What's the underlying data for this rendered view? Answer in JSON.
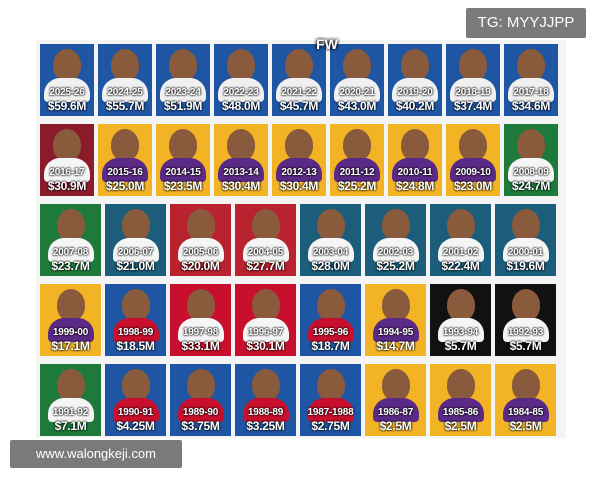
{
  "watermarks": {
    "top_right": "TG: MYYJJPP",
    "bottom_left": "www.walongkeji.com",
    "center_logo": "FW"
  },
  "rows": [
    [
      {
        "season": "2025-26",
        "salary": "$59.6M",
        "bg": "#1f56a3",
        "jersey": "#f0f0f0"
      },
      {
        "season": "2024-25",
        "salary": "$55.7M",
        "bg": "#1f56a3",
        "jersey": "#f0f0f0"
      },
      {
        "season": "2023-24",
        "salary": "$51.9M",
        "bg": "#1f56a3",
        "jersey": "#f0f0f0"
      },
      {
        "season": "2022-23",
        "salary": "$48.0M",
        "bg": "#1f56a3",
        "jersey": "#f0f0f0"
      },
      {
        "season": "2021-22",
        "salary": "$45.7M",
        "bg": "#1f56a3",
        "jersey": "#f0f0f0"
      },
      {
        "season": "2020-21",
        "salary": "$43.0M",
        "bg": "#1f56a3",
        "jersey": "#f0f0f0"
      },
      {
        "season": "2019-20",
        "salary": "$40.2M",
        "bg": "#1f56a3",
        "jersey": "#f0f0f0"
      },
      {
        "season": "2018-19",
        "salary": "$37.4M",
        "bg": "#1f56a3",
        "jersey": "#f0f0f0"
      },
      {
        "season": "2017-18",
        "salary": "$34.6M",
        "bg": "#1f56a3",
        "jersey": "#f0f0f0"
      }
    ],
    [
      {
        "season": "2016-17",
        "salary": "$30.9M",
        "bg": "#8b1a2b",
        "jersey": "#f5f5f5"
      },
      {
        "season": "2015-16",
        "salary": "$25.0M",
        "bg": "#f2b324",
        "jersey": "#5b2a86"
      },
      {
        "season": "2014-15",
        "salary": "$23.5M",
        "bg": "#f2b324",
        "jersey": "#5b2a86"
      },
      {
        "season": "2013-14",
        "salary": "$30.4M",
        "bg": "#f2b324",
        "jersey": "#5b2a86"
      },
      {
        "season": "2012-13",
        "salary": "$30.4M",
        "bg": "#f2b324",
        "jersey": "#5b2a86"
      },
      {
        "season": "2011-12",
        "salary": "$25.2M",
        "bg": "#f2b324",
        "jersey": "#5b2a86"
      },
      {
        "season": "2010-11",
        "salary": "$24.8M",
        "bg": "#f2b324",
        "jersey": "#5b2a86"
      },
      {
        "season": "2009-10",
        "salary": "$23.0M",
        "bg": "#f2b324",
        "jersey": "#5b2a86"
      },
      {
        "season": "2008-09",
        "salary": "$24.7M",
        "bg": "#1e7a3a",
        "jersey": "#f5f5f5"
      }
    ],
    [
      {
        "season": "2007-08",
        "salary": "$23.7M",
        "bg": "#1e7a3a",
        "jersey": "#f5f5f5"
      },
      {
        "season": "2006-07",
        "salary": "$21.0M",
        "bg": "#1b5d7a",
        "jersey": "#f5f5f5"
      },
      {
        "season": "2005-06",
        "salary": "$20.0M",
        "bg": "#b8232f",
        "jersey": "#f5f5f5"
      },
      {
        "season": "2004-05",
        "salary": "$27.7M",
        "bg": "#b8232f",
        "jersey": "#f5f5f5"
      },
      {
        "season": "2003-04",
        "salary": "$28.0M",
        "bg": "#1b5d7a",
        "jersey": "#f5f5f5"
      },
      {
        "season": "2002-03",
        "salary": "$25.2M",
        "bg": "#1b5d7a",
        "jersey": "#f5f5f5"
      },
      {
        "season": "2001-02",
        "salary": "$22.4M",
        "bg": "#1b5d7a",
        "jersey": "#f5f5f5"
      },
      {
        "season": "2000-01",
        "salary": "$19.6M",
        "bg": "#1b5d7a",
        "jersey": "#f5f5f5"
      }
    ],
    [
      {
        "season": "1999-00",
        "salary": "$17.1M",
        "bg": "#f2b324",
        "jersey": "#5b2a86"
      },
      {
        "season": "1998-99",
        "salary": "$18.5M",
        "bg": "#1f56a3",
        "jersey": "#c8102e"
      },
      {
        "season": "1997-98",
        "salary": "$33.1M",
        "bg": "#c8102e",
        "jersey": "#f5f5f5"
      },
      {
        "season": "1996-97",
        "salary": "$30.1M",
        "bg": "#c8102e",
        "jersey": "#f5f5f5"
      },
      {
        "season": "1995-96",
        "salary": "$18.7M",
        "bg": "#1f56a3",
        "jersey": "#c8102e"
      },
      {
        "season": "1994-95",
        "salary": "$14.7M",
        "bg": "#f2b324",
        "jersey": "#5b2a86"
      },
      {
        "season": "1993-94",
        "salary": "$5.7M",
        "bg": "#111111",
        "jersey": "#f5f5f5"
      },
      {
        "season": "1992-93",
        "salary": "$5.7M",
        "bg": "#111111",
        "jersey": "#f5f5f5"
      }
    ],
    [
      {
        "season": "1991-92",
        "salary": "$7.1M",
        "bg": "#1e7a3a",
        "jersey": "#f5f5f5"
      },
      {
        "season": "1990-91",
        "salary": "$4.25M",
        "bg": "#1f56a3",
        "jersey": "#c8102e"
      },
      {
        "season": "1989-90",
        "salary": "$3.75M",
        "bg": "#1f56a3",
        "jersey": "#c8102e"
      },
      {
        "season": "1988-89",
        "salary": "$3.25M",
        "bg": "#1f56a3",
        "jersey": "#c8102e"
      },
      {
        "season": "1987-1988",
        "salary": "$2.75M",
        "bg": "#1f56a3",
        "jersey": "#c8102e"
      },
      {
        "season": "1986-87",
        "salary": "$2.5M",
        "bg": "#f2b324",
        "jersey": "#5b2a86"
      },
      {
        "season": "1985-86",
        "salary": "$2.5M",
        "bg": "#f2b324",
        "jersey": "#5b2a86"
      },
      {
        "season": "1984-85",
        "salary": "$2.5M",
        "bg": "#f2b324",
        "jersey": "#5b2a86"
      }
    ]
  ]
}
